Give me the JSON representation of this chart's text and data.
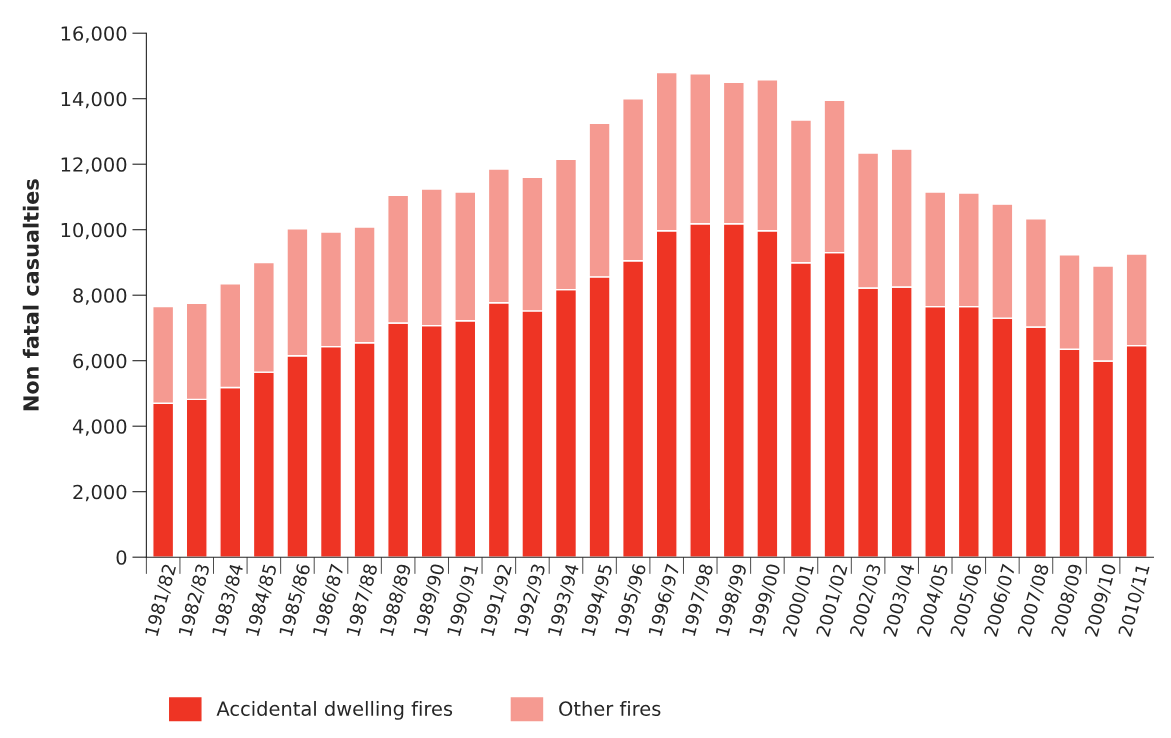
{
  "chart_data": {
    "type": "bar",
    "stacked": true,
    "ylabel": "Non fatal casualties",
    "categories": [
      "1981/82",
      "1982/83",
      "1983/84",
      "1984/85",
      "1985/86",
      "1986/87",
      "1987/88",
      "1988/89",
      "1989/90",
      "1990/91",
      "1991/92",
      "1992/93",
      "1993/94",
      "1994/95",
      "1995/96",
      "1996/97",
      "1997/98",
      "1998/99",
      "1999/00",
      "2000/01",
      "2001/02",
      "2002/03",
      "2003/04",
      "2004/05",
      "2005/06",
      "2006/07",
      "2007/08",
      "2008/09",
      "2009/10",
      "2010/11"
    ],
    "series": [
      {
        "name": "Accidental dwelling fires",
        "color": "#ee3424",
        "values": [
          4700,
          4820,
          5180,
          5650,
          6150,
          6430,
          6550,
          7150,
          7070,
          7220,
          7770,
          7520,
          8170,
          8560,
          9050,
          9970,
          10180,
          10180,
          9970,
          8990,
          9300,
          8220,
          8250,
          7650,
          7650,
          7300,
          7030,
          6350,
          5990,
          6460
        ]
      },
      {
        "name": "Other fires",
        "color": "#f59a91",
        "values": [
          2950,
          2930,
          3170,
          3350,
          3880,
          3500,
          3530,
          3900,
          4170,
          3930,
          4080,
          4080,
          3980,
          4690,
          4950,
          4830,
          4580,
          4320,
          4610,
          4360,
          4650,
          4120,
          4210,
          3500,
          3470,
          3480,
          3300,
          2880,
          2900,
          2800
        ]
      }
    ],
    "ylim": [
      0,
      16000
    ],
    "yticks": [
      {
        "value": 0,
        "label": "0"
      },
      {
        "value": 2000,
        "label": "2,000"
      },
      {
        "value": 4000,
        "label": "4,000"
      },
      {
        "value": 6000,
        "label": "6,000"
      },
      {
        "value": 8000,
        "label": "8,000"
      },
      {
        "value": 10000,
        "label": "10,000"
      },
      {
        "value": 12000,
        "label": "12,000"
      },
      {
        "value": 14000,
        "label": "14,000"
      },
      {
        "value": 16000,
        "label": "16,000"
      }
    ],
    "grid": false,
    "legend": "bottom left"
  }
}
